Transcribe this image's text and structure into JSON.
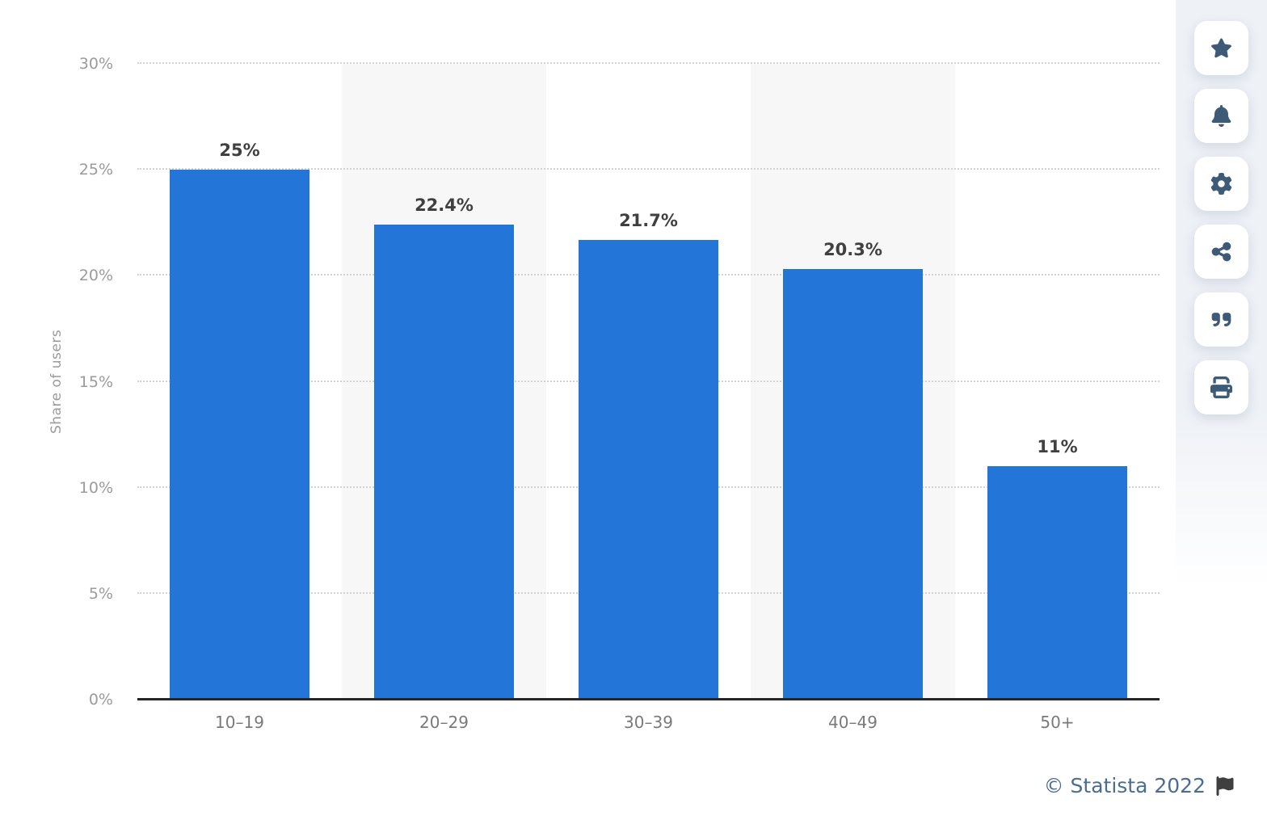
{
  "chart_data": {
    "type": "bar",
    "title": "",
    "xlabel": "",
    "ylabel": "Share of users",
    "categories": [
      "10–19",
      "20–29",
      "30–39",
      "40–49",
      "50+"
    ],
    "values": [
      25,
      22.4,
      21.7,
      20.3,
      11
    ],
    "value_labels": [
      "25%",
      "22.4%",
      "21.7%",
      "20.3%",
      "11%"
    ],
    "ylim": [
      0,
      30
    ],
    "yticks": [
      0,
      5,
      10,
      15,
      20,
      25,
      30
    ],
    "ytick_labels": [
      "0%",
      "5%",
      "10%",
      "15%",
      "20%",
      "25%",
      "30%"
    ],
    "grid": "horizontal-dotted",
    "legend": "none",
    "banded_columns": [
      1,
      3
    ],
    "colors": {
      "bar": "#2376d8",
      "band": "#f7f7f7",
      "gridline": "#d2d2d2",
      "axis_line": "#262626",
      "tick_text": "#9b9b9b",
      "category_text": "#7a7a7a",
      "value_text": "#404040"
    }
  },
  "toolbar": {
    "buttons": [
      {
        "name": "favorite",
        "icon": "star-icon"
      },
      {
        "name": "notifications",
        "icon": "bell-icon"
      },
      {
        "name": "settings",
        "icon": "gear-icon"
      },
      {
        "name": "share",
        "icon": "share-icon"
      },
      {
        "name": "cite",
        "icon": "quote-icon"
      },
      {
        "name": "print",
        "icon": "printer-icon"
      }
    ],
    "icon_color": "#3d5a77"
  },
  "footer": {
    "credit": "© Statista 2022",
    "flag_icon": "flag-icon",
    "credit_color": "#4a6d90"
  }
}
